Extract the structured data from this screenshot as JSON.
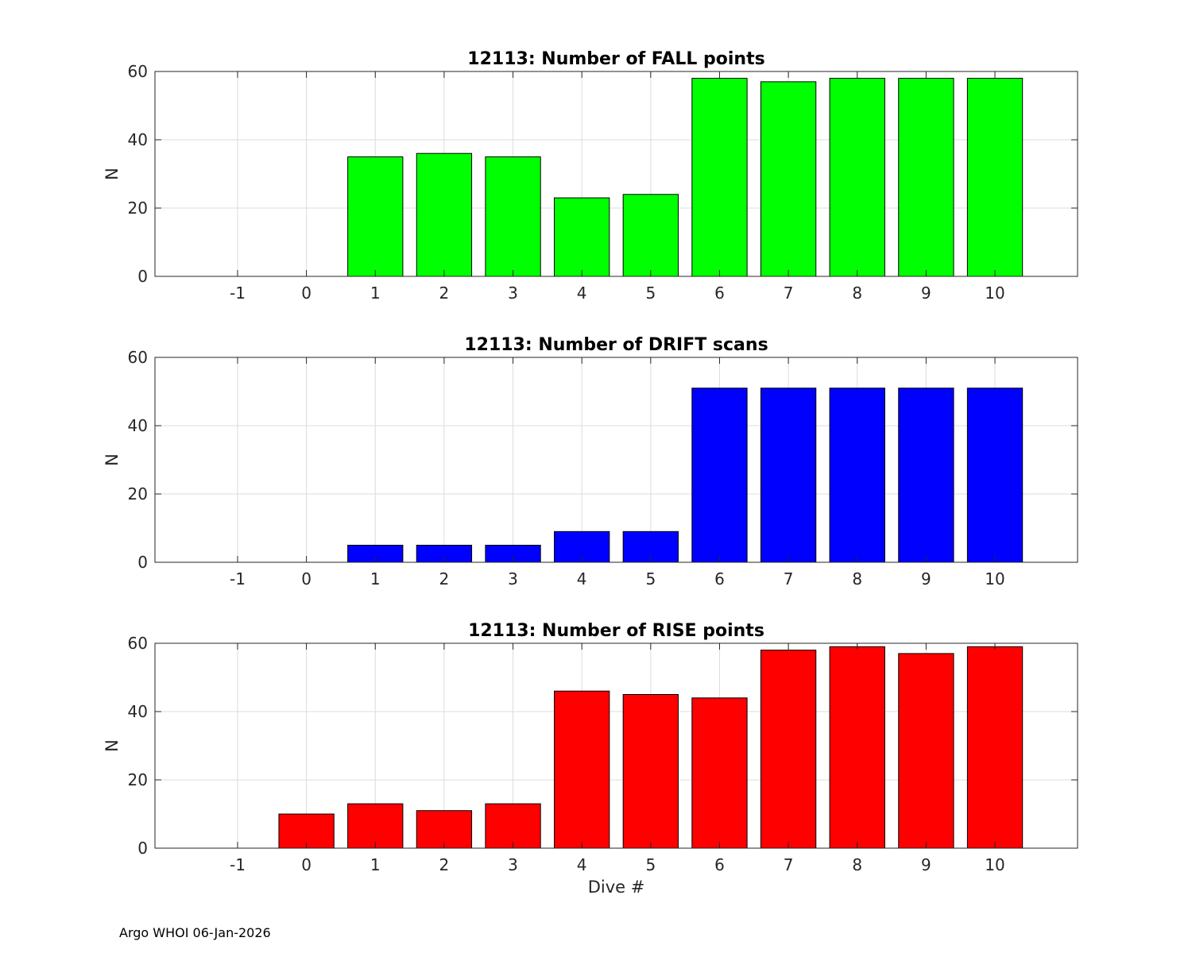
{
  "chart_data": [
    {
      "type": "bar",
      "title": "12113: Number of FALL points",
      "xlabel": "",
      "ylabel": "N",
      "categories": [
        -1,
        0,
        1,
        2,
        3,
        4,
        5,
        6,
        7,
        8,
        9,
        10
      ],
      "values": [
        0,
        0,
        35,
        36,
        35,
        23,
        24,
        58,
        57,
        58,
        58,
        58
      ],
      "color": "#00ff00",
      "xlim": [
        -2.2,
        11.2
      ],
      "ylim": [
        0,
        60
      ],
      "yticks": [
        0,
        20,
        40,
        60
      ],
      "grid": true
    },
    {
      "type": "bar",
      "title": "12113: Number of DRIFT scans",
      "xlabel": "",
      "ylabel": "N",
      "categories": [
        -1,
        0,
        1,
        2,
        3,
        4,
        5,
        6,
        7,
        8,
        9,
        10
      ],
      "values": [
        0,
        0,
        5,
        5,
        5,
        9,
        9,
        51,
        51,
        51,
        51,
        51
      ],
      "color": "#0000ff",
      "xlim": [
        -2.2,
        11.2
      ],
      "ylim": [
        0,
        60
      ],
      "yticks": [
        0,
        20,
        40,
        60
      ],
      "grid": true
    },
    {
      "type": "bar",
      "title": "12113: Number of RISE points",
      "xlabel": "Dive #",
      "ylabel": "N",
      "categories": [
        -1,
        0,
        1,
        2,
        3,
        4,
        5,
        6,
        7,
        8,
        9,
        10
      ],
      "values": [
        0,
        10,
        13,
        11,
        13,
        46,
        45,
        44,
        58,
        59,
        57,
        59
      ],
      "color": "#ff0000",
      "xlim": [
        -2.2,
        11.2
      ],
      "ylim": [
        0,
        60
      ],
      "yticks": [
        0,
        20,
        40,
        60
      ],
      "grid": true
    }
  ],
  "footer": "Argo WHOI 06-Jan-2026"
}
